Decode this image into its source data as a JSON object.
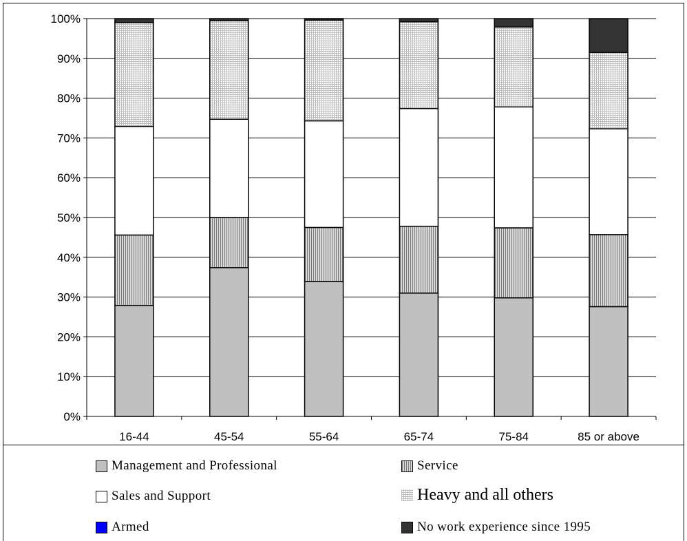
{
  "chart_data": {
    "type": "bar",
    "stacked": true,
    "categories": [
      "16-44",
      "45-54",
      "55-64",
      "65-74",
      "75-84",
      "85 or above"
    ],
    "series": [
      {
        "name": "Management and Professional",
        "color": "#c0c0c0",
        "pattern": "solid",
        "values": [
          27.9,
          37.4,
          33.9,
          31.0,
          29.8,
          27.6
        ]
      },
      {
        "name": "Service",
        "color": "#c0c0c0",
        "pattern": "vertical-stripes",
        "values": [
          17.7,
          12.6,
          13.6,
          16.8,
          17.6,
          18.1
        ]
      },
      {
        "name": "Sales and Support",
        "color": "#ffffff",
        "pattern": "solid",
        "values": [
          27.3,
          24.7,
          26.8,
          29.6,
          30.4,
          26.6
        ]
      },
      {
        "name": "Armed",
        "color": "#0000ff",
        "pattern": "solid",
        "values": [
          0,
          0,
          0,
          0,
          0,
          0
        ]
      },
      {
        "name": "Heavy and all others",
        "color": "#cccccc",
        "pattern": "fine-grid",
        "values": [
          26.1,
          24.8,
          25.3,
          21.8,
          20.1,
          19.2
        ]
      },
      {
        "name": "No work experience since 1995",
        "color": "#333333",
        "pattern": "solid",
        "values": [
          1.0,
          0.5,
          0.4,
          0.8,
          2.1,
          8.5
        ]
      }
    ],
    "yticks": [
      "0%",
      "10%",
      "20%",
      "30%",
      "40%",
      "50%",
      "60%",
      "70%",
      "80%",
      "90%",
      "100%"
    ],
    "ylim": [
      0,
      100
    ],
    "title": "",
    "xlabel": "",
    "ylabel": "",
    "grid": true,
    "legend_placement": "bottom"
  },
  "legend": {
    "items": [
      {
        "label": "Management and Professional",
        "icon": "solid-gray-swatch"
      },
      {
        "label": "Service",
        "icon": "vertical-stripe-swatch"
      },
      {
        "label": "Sales and Support",
        "icon": "white-swatch"
      },
      {
        "label": "Heavy and all others",
        "icon": "fine-grid-swatch"
      },
      {
        "label": "Armed",
        "icon": "blue-swatch"
      },
      {
        "label": "No work experience since 1995",
        "icon": "dark-swatch"
      }
    ]
  }
}
